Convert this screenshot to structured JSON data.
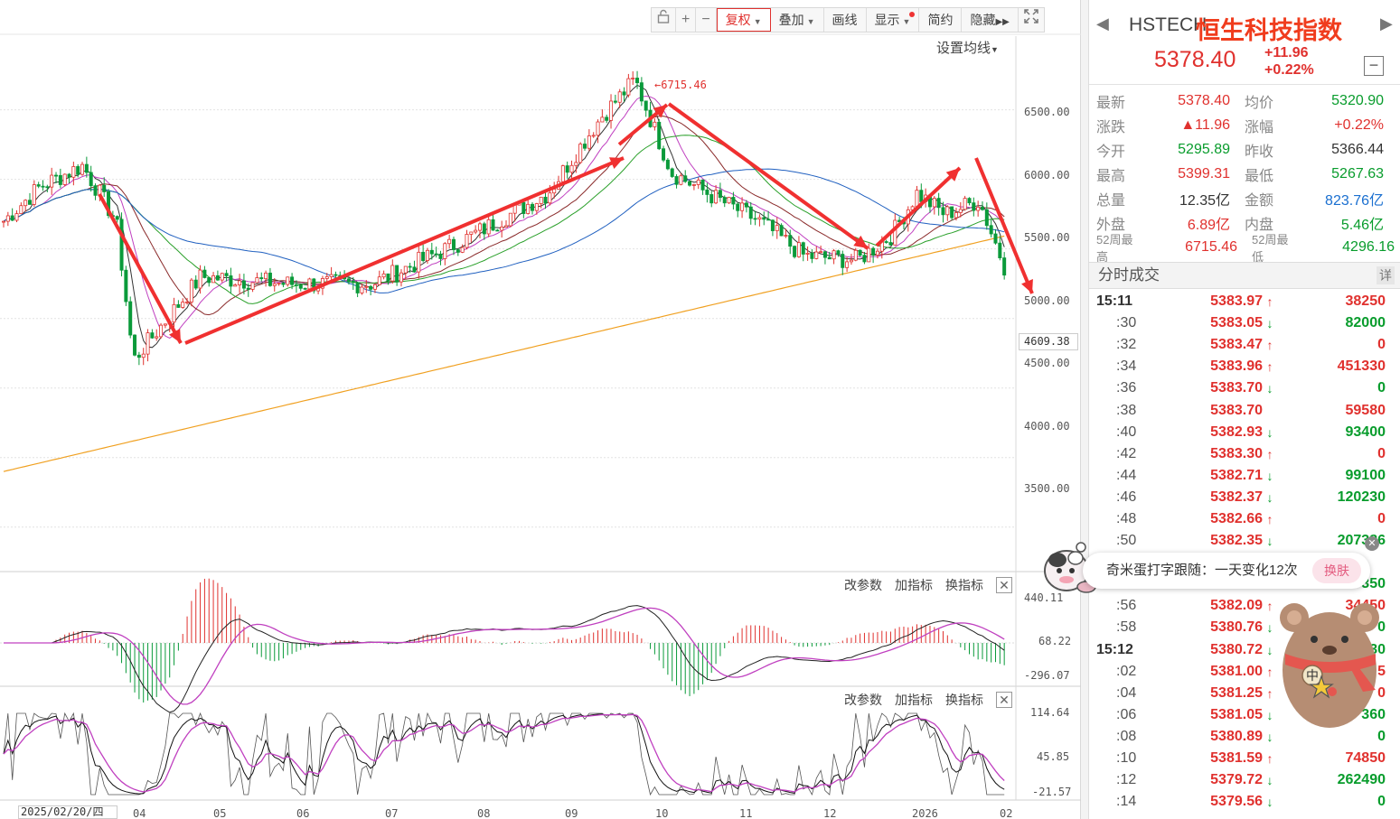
{
  "toolbar": {
    "lock_icon": "lock-icon",
    "zoom_in": "+",
    "zoom_out": "−",
    "fuquan": "复权",
    "overlay": "叠加",
    "draw": "画线",
    "display": "显示",
    "simple": "简约",
    "hide": "隐藏",
    "fullscreen_icon": "fullscreen-icon"
  },
  "ma_setting": "设置均线",
  "indicator_panel": {
    "change_params": "改参数",
    "add_indicator": "加指标",
    "switch_indicator": "换指标",
    "close": "✕"
  },
  "main_axis": {
    "ticks": [
      "6500.00",
      "6000.00",
      "5500.00",
      "5000.00",
      "4500.00",
      "4000.00",
      "3500.00"
    ],
    "current_marker": "4609.38"
  },
  "macd_axis": {
    "ticks": [
      "440.11",
      "68.22",
      "-296.07"
    ]
  },
  "kdj_axis": {
    "ticks": [
      "114.64",
      "45.85",
      "-21.57"
    ]
  },
  "x_axis": {
    "cursor_date": "2025/02/20/四",
    "months": [
      "04",
      "05",
      "06",
      "07",
      "08",
      "09",
      "10",
      "11",
      "12",
      "2026",
      "02"
    ]
  },
  "peak_label": "←6715.46",
  "chart_data": {
    "type": "candlestick",
    "title": "",
    "y_range": [
      3200,
      6900
    ],
    "y_ticks": [
      3500,
      4000,
      4500,
      5000,
      5500,
      6000,
      6500
    ],
    "peak": 6715.46,
    "close_path": [
      {
        "d": "2025-02-20",
        "v": 5700
      },
      {
        "d": "2025-03-05",
        "v": 5950
      },
      {
        "d": "2025-03-20",
        "v": 6100
      },
      {
        "d": "2025-04-01",
        "v": 5700
      },
      {
        "d": "2025-04-07",
        "v": 4700
      },
      {
        "d": "2025-04-15",
        "v": 4900
      },
      {
        "d": "2025-05-01",
        "v": 5300
      },
      {
        "d": "2025-06-01",
        "v": 5250
      },
      {
        "d": "2025-07-01",
        "v": 5250
      },
      {
        "d": "2025-08-01",
        "v": 5550
      },
      {
        "d": "2025-09-01",
        "v": 5900
      },
      {
        "d": "2025-09-20",
        "v": 6450
      },
      {
        "d": "2025-10-02",
        "v": 6715
      },
      {
        "d": "2025-10-15",
        "v": 6050
      },
      {
        "d": "2025-11-01",
        "v": 5850
      },
      {
        "d": "2025-11-15",
        "v": 5700
      },
      {
        "d": "2025-12-01",
        "v": 5450
      },
      {
        "d": "2025-12-20",
        "v": 5420
      },
      {
        "d": "2026-01-01",
        "v": 5600
      },
      {
        "d": "2026-01-10",
        "v": 5900
      },
      {
        "d": "2026-01-20",
        "v": 5750
      },
      {
        "d": "2026-02-01",
        "v": 5850
      },
      {
        "d": "2026-02-10",
        "v": 5378
      }
    ]
  },
  "quote": {
    "code": "HSTECH",
    "name": "恒生科技指数",
    "price": "5378.40",
    "change": "+11.96",
    "change_pct": "+0.22%",
    "collapse": "−",
    "rows": [
      {
        "l1": "最新",
        "v1": "5378.40",
        "c1": "red",
        "l2": "均价",
        "v2": "5320.90",
        "c2": "green"
      },
      {
        "l1": "涨跌",
        "v1": "▲11.96",
        "c1": "red",
        "l2": "涨幅",
        "v2": "+0.22%",
        "c2": "red"
      },
      {
        "l1": "今开",
        "v1": "5295.89",
        "c1": "green",
        "l2": "昨收",
        "v2": "5366.44",
        "c2": "black"
      },
      {
        "l1": "最高",
        "v1": "5399.31",
        "c1": "red",
        "l2": "最低",
        "v2": "5267.63",
        "c2": "green"
      },
      {
        "l1": "总量",
        "v1": "12.35亿",
        "c1": "black",
        "l2": "金额",
        "v2": "823.76亿",
        "c2": "blue"
      },
      {
        "l1": "外盘",
        "v1": "6.89亿",
        "c1": "red",
        "l2": "内盘",
        "v2": "5.46亿",
        "c2": "green"
      },
      {
        "l1": "52周最高",
        "v1": "6715.46",
        "c1": "red",
        "l2": "52周最低",
        "v2": "4296.16",
        "c2": "green"
      }
    ]
  },
  "ticks_header": {
    "title": "分时成交",
    "detail": "详"
  },
  "ticks": [
    {
      "t": "15:11",
      "major": true,
      "p": "5383.97",
      "dir": "up",
      "v": "38250",
      "vc": "red"
    },
    {
      "t": ":30",
      "p": "5383.05",
      "dir": "down",
      "v": "82000",
      "vc": "green"
    },
    {
      "t": ":32",
      "p": "5383.47",
      "dir": "up",
      "v": "0",
      "vc": "red"
    },
    {
      "t": ":34",
      "p": "5383.96",
      "dir": "up",
      "v": "451330",
      "vc": "red"
    },
    {
      "t": ":36",
      "p": "5383.70",
      "dir": "down",
      "v": "0",
      "vc": "green"
    },
    {
      "t": ":38",
      "p": "5383.70",
      "dir": "none",
      "v": "59580",
      "vc": "red"
    },
    {
      "t": ":40",
      "p": "5382.93",
      "dir": "down",
      "v": "93400",
      "vc": "green"
    },
    {
      "t": ":42",
      "p": "5383.30",
      "dir": "up",
      "v": "0",
      "vc": "red"
    },
    {
      "t": ":44",
      "p": "5382.71",
      "dir": "down",
      "v": "99100",
      "vc": "green"
    },
    {
      "t": ":46",
      "p": "5382.37",
      "dir": "down",
      "v": "120230",
      "vc": "green"
    },
    {
      "t": ":48",
      "p": "5382.66",
      "dir": "up",
      "v": "0",
      "vc": "red"
    },
    {
      "t": ":50",
      "p": "5382.35",
      "dir": "down",
      "v": "207386",
      "vc": "green"
    },
    {
      "t": ":52",
      "p": "",
      "dir": "none",
      "v": "",
      "vc": "green"
    },
    {
      "t": ":54",
      "p": "",
      "dir": "none",
      "v": "350",
      "vc": "green"
    },
    {
      "t": ":56",
      "p": "5382.09",
      "dir": "up",
      "v": "34450",
      "vc": "red"
    },
    {
      "t": ":58",
      "p": "5380.76",
      "dir": "down",
      "v": "0",
      "vc": "green"
    },
    {
      "t": "15:12",
      "major": true,
      "p": "5380.72",
      "dir": "down",
      "v": "30",
      "vc": "green"
    },
    {
      "t": ":02",
      "p": "5381.00",
      "dir": "up",
      "v": "5",
      "vc": "red"
    },
    {
      "t": ":04",
      "p": "5381.25",
      "dir": "up",
      "v": "0",
      "vc": "red"
    },
    {
      "t": ":06",
      "p": "5381.05",
      "dir": "down",
      "v": "360",
      "vc": "green"
    },
    {
      "t": ":08",
      "p": "5380.89",
      "dir": "down",
      "v": "0",
      "vc": "green"
    },
    {
      "t": ":10",
      "p": "5381.59",
      "dir": "up",
      "v": "74850",
      "vc": "red"
    },
    {
      "t": ":12",
      "p": "5379.72",
      "dir": "down",
      "v": "262490",
      "vc": "green"
    },
    {
      "t": ":14",
      "p": "5379.56",
      "dir": "down",
      "v": "0",
      "vc": "green"
    }
  ],
  "notification": {
    "text": "奇米蛋打字跟随：一天变化12次",
    "skin_button": "换肤",
    "close": "✕"
  },
  "mascot": {
    "badge": "中"
  }
}
